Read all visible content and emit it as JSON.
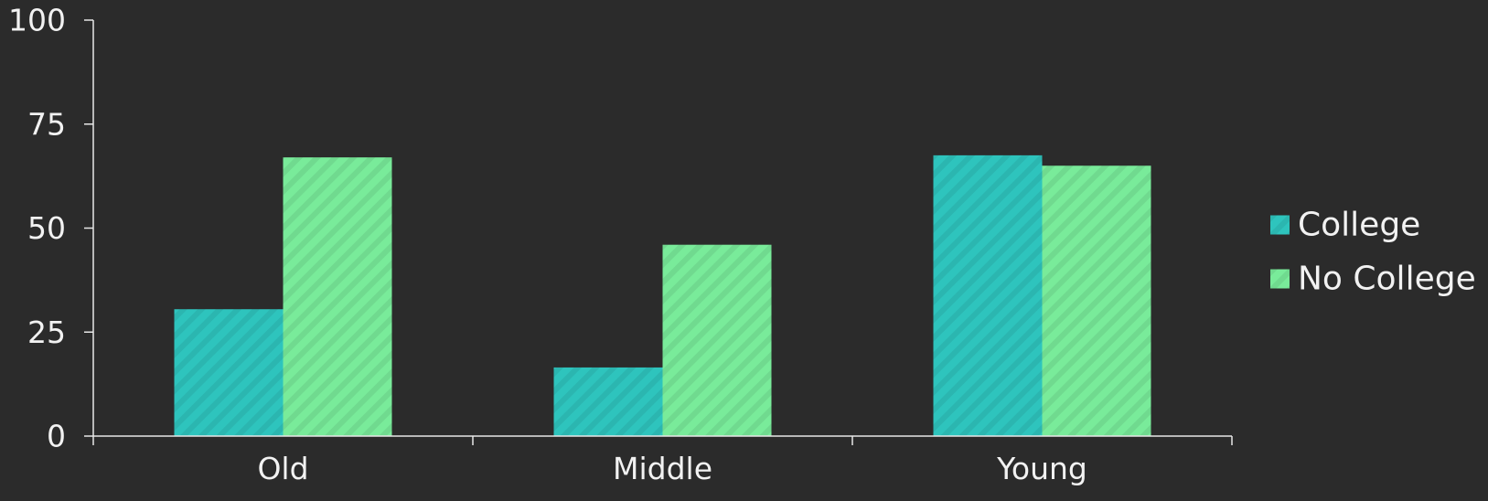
{
  "chart_data": {
    "type": "bar",
    "categories": [
      "Old",
      "Middle",
      "Young"
    ],
    "series": [
      {
        "name": "College",
        "values": [
          30.5,
          16.5,
          67.5
        ],
        "color": "#2ec4bd"
      },
      {
        "name": "No College",
        "values": [
          67,
          46,
          65
        ],
        "color": "#79eb9a"
      }
    ],
    "ylim": [
      0,
      100
    ],
    "yticks": [
      0,
      25,
      50,
      75,
      100
    ],
    "title": "",
    "xlabel": "",
    "ylabel": "",
    "grid": false,
    "legend_position": "right",
    "bar_pattern": "diagonal-stripes"
  },
  "colors": {
    "background": "#2b2b2b",
    "axis": "#e8e8e8",
    "text": "#f2f2f2"
  }
}
